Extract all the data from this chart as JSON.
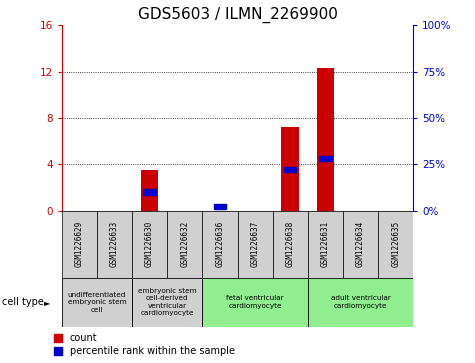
{
  "title": "GDS5603 / ILMN_2269900",
  "samples": [
    "GSM1226629",
    "GSM1226633",
    "GSM1226630",
    "GSM1226632",
    "GSM1226636",
    "GSM1226637",
    "GSM1226638",
    "GSM1226631",
    "GSM1226634",
    "GSM1226635"
  ],
  "count_values": [
    0,
    0,
    3.5,
    0,
    0,
    0,
    7.2,
    12.3,
    0,
    0
  ],
  "percentile_values": [
    0,
    0,
    10,
    0,
    2,
    0,
    22,
    28,
    0,
    0
  ],
  "ylim_left": [
    0,
    16
  ],
  "ylim_right": [
    0,
    100
  ],
  "yticks_left": [
    0,
    4,
    8,
    12,
    16
  ],
  "yticks_right": [
    0,
    25,
    50,
    75,
    100
  ],
  "yticklabels_left": [
    "0",
    "4",
    "8",
    "12",
    "16"
  ],
  "yticklabels_right": [
    "0%",
    "25%",
    "50%",
    "75%",
    "100%"
  ],
  "left_axis_color": "#cc0000",
  "right_axis_color": "#0000cc",
  "bar_color": "#cc0000",
  "percentile_color": "#0000cc",
  "cell_type_groups": [
    {
      "label": "undifferentiated\nembryonic stem\ncell",
      "start": 0,
      "end": 2,
      "color": "#d0d0d0"
    },
    {
      "label": "embryonic stem\ncell-derived\nventricular\ncardiomyocyte",
      "start": 2,
      "end": 4,
      "color": "#d0d0d0"
    },
    {
      "label": "fetal ventricular\ncardiomyocyte",
      "start": 4,
      "end": 7,
      "color": "#90ee90"
    },
    {
      "label": "adult ventricular\ncardiomyocyte",
      "start": 7,
      "end": 10,
      "color": "#90ee90"
    }
  ],
  "cell_type_label": "cell type",
  "legend_count_label": "count",
  "legend_percentile_label": "percentile rank within the sample",
  "background_color": "#ffffff",
  "plot_background": "#ffffff",
  "title_fontsize": 11,
  "bar_width": 0.5
}
